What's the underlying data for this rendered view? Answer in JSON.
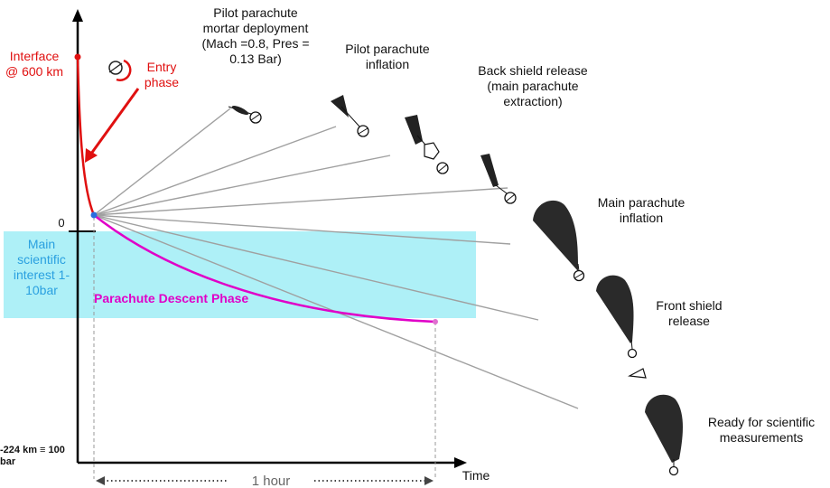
{
  "axes": {
    "y_zero": "0",
    "y_bottom": "-224 km ≡ 100 bar",
    "x_label": "Time",
    "duration": "1 hour"
  },
  "labels": {
    "interface": "Interface @ 600 km",
    "entry": "Entry phase",
    "band": "Main scientific interest 1-10bar",
    "descent": "Parachute Descent Phase",
    "mortar": "Pilot parachute mortar deployment (Mach =0.8, Pres = 0.13 Bar)",
    "pilot_inflation": "Pilot parachute inflation",
    "back_shield": "Back shield release (main parachute extraction)",
    "main_inflation": "Main parachute inflation",
    "front_shield": "Front shield release",
    "ready": "Ready for scientific measurements"
  },
  "colors": {
    "entry": "#e01010",
    "descent": "#e000c8",
    "band": "#aef0f7",
    "band_text": "#2aa0e0",
    "rays": "#a0a0a0",
    "axis": "#000000"
  }
}
